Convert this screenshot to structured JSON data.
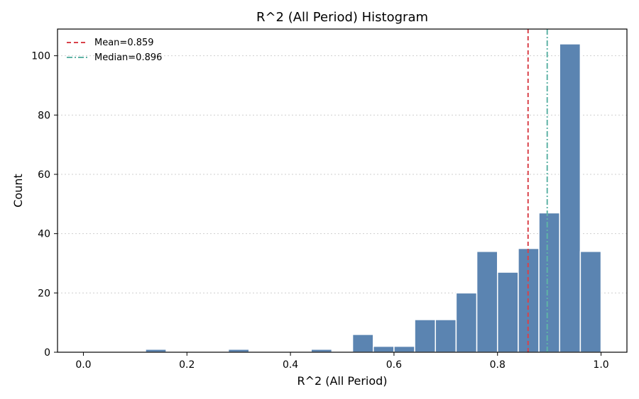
{
  "chart_data": {
    "type": "bar",
    "title": "R^2 (All Period) Histogram",
    "xlabel": "R^2 (All Period)",
    "ylabel": "Count",
    "xlim": [
      -0.05,
      1.05
    ],
    "ylim": [
      0,
      109
    ],
    "xticks": [
      0.0,
      0.2,
      0.4,
      0.6,
      0.8,
      1.0
    ],
    "xtick_labels": [
      "0.0",
      "0.2",
      "0.4",
      "0.6",
      "0.8",
      "1.0"
    ],
    "yticks": [
      0,
      20,
      40,
      60,
      80,
      100
    ],
    "ytick_labels": [
      "0",
      "20",
      "40",
      "60",
      "80",
      "100"
    ],
    "grid": "y-dotted",
    "bin_width": 0.04,
    "bins": [
      {
        "x0": 0.12,
        "x1": 0.16,
        "count": 1
      },
      {
        "x0": 0.28,
        "x1": 0.32,
        "count": 1
      },
      {
        "x0": 0.44,
        "x1": 0.48,
        "count": 1
      },
      {
        "x0": 0.52,
        "x1": 0.56,
        "count": 6
      },
      {
        "x0": 0.56,
        "x1": 0.6,
        "count": 2
      },
      {
        "x0": 0.6,
        "x1": 0.64,
        "count": 2
      },
      {
        "x0": 0.64,
        "x1": 0.68,
        "count": 11
      },
      {
        "x0": 0.68,
        "x1": 0.72,
        "count": 11
      },
      {
        "x0": 0.72,
        "x1": 0.76,
        "count": 20
      },
      {
        "x0": 0.76,
        "x1": 0.8,
        "count": 34
      },
      {
        "x0": 0.8,
        "x1": 0.84,
        "count": 27
      },
      {
        "x0": 0.84,
        "x1": 0.88,
        "count": 35
      },
      {
        "x0": 0.88,
        "x1": 0.92,
        "count": 47
      },
      {
        "x0": 0.92,
        "x1": 0.96,
        "count": 104
      },
      {
        "x0": 0.96,
        "x1": 1.0,
        "count": 34
      }
    ],
    "bar_color": "#5b84b1",
    "reference_lines": [
      {
        "label": "Mean=0.859",
        "value": 0.859,
        "color": "#d9424a",
        "style": "dashed"
      },
      {
        "label": "Median=0.896",
        "value": 0.896,
        "color": "#5fb3a6",
        "style": "dashdot"
      }
    ],
    "legend_position": "top-left"
  }
}
